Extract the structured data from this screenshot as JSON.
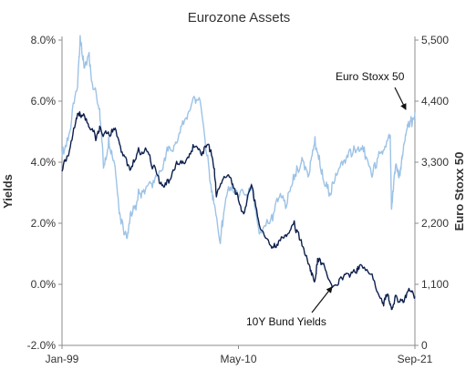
{
  "chart_data": {
    "type": "line",
    "title": "Eurozone Assets",
    "x_ticks": [
      "Jan-99",
      "May-10",
      "Sep-21"
    ],
    "x_range": [
      "1999-01",
      "2021-09"
    ],
    "y_left": {
      "label": "Yields",
      "range": [
        -2.0,
        8.0
      ],
      "ticks": [
        -2.0,
        0.0,
        2.0,
        4.0,
        6.0,
        8.0
      ],
      "tick_labels": [
        "-2.0%",
        "0.0%",
        "2.0%",
        "4.0%",
        "6.0%",
        "8.0%"
      ]
    },
    "y_right": {
      "label": "Euro Stoxx 50",
      "range": [
        0,
        5500
      ],
      "ticks": [
        0,
        1100,
        2200,
        3300,
        4400,
        5500
      ],
      "tick_labels": [
        "0",
        "1,100",
        "2,200",
        "3,300",
        "4,400",
        "5,500"
      ]
    },
    "grid": false,
    "legend": "none",
    "series": [
      {
        "name": "Euro Stoxx 50",
        "axis": "right",
        "color": "#9dc3e6",
        "points": [
          [
            "1999-01",
            3400
          ],
          [
            "1999-07",
            3800
          ],
          [
            "2000-01",
            4700
          ],
          [
            "2000-03",
            5450
          ],
          [
            "2000-06",
            5100
          ],
          [
            "2000-09",
            5300
          ],
          [
            "2001-01",
            4700
          ],
          [
            "2001-06",
            4300
          ],
          [
            "2001-09",
            3100
          ],
          [
            "2002-01",
            3700
          ],
          [
            "2002-06",
            3200
          ],
          [
            "2002-10",
            2300
          ],
          [
            "2003-03",
            1950
          ],
          [
            "2003-06",
            2400
          ],
          [
            "2003-12",
            2750
          ],
          [
            "2004-06",
            2800
          ],
          [
            "2004-12",
            2950
          ],
          [
            "2005-06",
            3200
          ],
          [
            "2005-12",
            3550
          ],
          [
            "2006-06",
            3700
          ],
          [
            "2006-12",
            4100
          ],
          [
            "2007-06",
            4450
          ],
          [
            "2007-12",
            4350
          ],
          [
            "2008-06",
            3300
          ],
          [
            "2008-10",
            2500
          ],
          [
            "2009-03",
            1850
          ],
          [
            "2009-06",
            2400
          ],
          [
            "2009-12",
            2950
          ],
          [
            "2010-05",
            2650
          ],
          [
            "2010-12",
            2800
          ],
          [
            "2011-03",
            2950
          ],
          [
            "2011-09",
            2100
          ],
          [
            "2012-06",
            2150
          ],
          [
            "2012-12",
            2650
          ],
          [
            "2013-06",
            2600
          ],
          [
            "2013-12",
            3100
          ],
          [
            "2014-06",
            3250
          ],
          [
            "2014-12",
            3150
          ],
          [
            "2015-04",
            3750
          ],
          [
            "2015-09",
            3100
          ],
          [
            "2016-02",
            2750
          ],
          [
            "2016-06",
            2850
          ],
          [
            "2016-12",
            3250
          ],
          [
            "2017-06",
            3500
          ],
          [
            "2017-12",
            3500
          ],
          [
            "2018-06",
            3450
          ],
          [
            "2018-12",
            3000
          ],
          [
            "2019-06",
            3450
          ],
          [
            "2019-12",
            3750
          ],
          [
            "2020-02",
            3850
          ],
          [
            "2020-03",
            2400
          ],
          [
            "2020-06",
            3250
          ],
          [
            "2020-10",
            3150
          ],
          [
            "2020-12",
            3550
          ],
          [
            "2021-03",
            3900
          ],
          [
            "2021-06",
            4100
          ],
          [
            "2021-09",
            4200
          ]
        ]
      },
      {
        "name": "10Y Bund Yields",
        "axis": "left",
        "color": "#0d1f4d",
        "points": [
          [
            "1999-01",
            3.7
          ],
          [
            "1999-06",
            4.2
          ],
          [
            "1999-12",
            5.3
          ],
          [
            "2000-03",
            5.5
          ],
          [
            "2000-09",
            5.3
          ],
          [
            "2001-03",
            4.8
          ],
          [
            "2001-06",
            5.1
          ],
          [
            "2001-12",
            4.9
          ],
          [
            "2002-06",
            5.1
          ],
          [
            "2002-12",
            4.3
          ],
          [
            "2003-06",
            3.8
          ],
          [
            "2003-12",
            4.4
          ],
          [
            "2004-06",
            4.3
          ],
          [
            "2004-12",
            3.8
          ],
          [
            "2005-06",
            3.3
          ],
          [
            "2005-12",
            3.4
          ],
          [
            "2006-06",
            4.0
          ],
          [
            "2006-12",
            3.9
          ],
          [
            "2007-06",
            4.6
          ],
          [
            "2007-12",
            4.3
          ],
          [
            "2008-06",
            4.6
          ],
          [
            "2008-10",
            3.9
          ],
          [
            "2008-12",
            3.0
          ],
          [
            "2009-06",
            3.5
          ],
          [
            "2009-12",
            3.3
          ],
          [
            "2010-05",
            2.8
          ],
          [
            "2010-09",
            2.3
          ],
          [
            "2011-03",
            3.3
          ],
          [
            "2011-09",
            1.9
          ],
          [
            "2012-06",
            1.3
          ],
          [
            "2012-12",
            1.4
          ],
          [
            "2013-06",
            1.6
          ],
          [
            "2013-12",
            1.9
          ],
          [
            "2014-06",
            1.3
          ],
          [
            "2014-12",
            0.6
          ],
          [
            "2015-04",
            0.1
          ],
          [
            "2015-06",
            0.9
          ],
          [
            "2015-12",
            0.6
          ],
          [
            "2016-06",
            -0.1
          ],
          [
            "2016-12",
            0.2
          ],
          [
            "2017-06",
            0.3
          ],
          [
            "2017-12",
            0.4
          ],
          [
            "2018-03",
            0.7
          ],
          [
            "2018-12",
            0.3
          ],
          [
            "2019-08",
            -0.65
          ],
          [
            "2019-12",
            -0.2
          ],
          [
            "2020-03",
            -0.8
          ],
          [
            "2020-06",
            -0.45
          ],
          [
            "2020-12",
            -0.6
          ],
          [
            "2021-05",
            -0.15
          ],
          [
            "2021-09",
            -0.4
          ]
        ]
      }
    ],
    "annotations": [
      {
        "text": "Euro Stoxx 50",
        "points_to_series": "Euro Stoxx 50"
      },
      {
        "text": "10Y Bund Yields",
        "points_to_series": "10Y Bund Yields"
      }
    ]
  }
}
